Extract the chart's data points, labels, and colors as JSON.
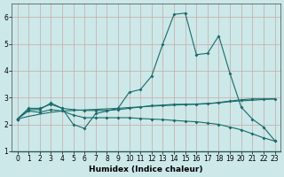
{
  "xlabel": "Humidex (Indice chaleur)",
  "xlim": [
    -0.5,
    23.5
  ],
  "ylim": [
    1,
    6.5
  ],
  "yticks": [
    1,
    2,
    3,
    4,
    5,
    6
  ],
  "xticks": [
    0,
    1,
    2,
    3,
    4,
    5,
    6,
    7,
    8,
    9,
    10,
    11,
    12,
    13,
    14,
    15,
    16,
    17,
    18,
    19,
    20,
    21,
    22,
    23
  ],
  "bg_color": "#cce8e8",
  "plot_bg": "#cce8e8",
  "grid_color_v": "#c8a8a8",
  "grid_color_h": "#c8a8a8",
  "line_color": "#1a6b6b",
  "line1_y": [
    2.2,
    2.6,
    2.6,
    2.75,
    2.6,
    2.0,
    1.85,
    2.4,
    2.5,
    2.6,
    3.2,
    3.3,
    3.8,
    5.0,
    6.1,
    6.15,
    4.6,
    4.65,
    5.3,
    3.9,
    2.65,
    2.2,
    1.9,
    1.4
  ],
  "line2_y": [
    2.2,
    2.55,
    2.55,
    2.8,
    2.6,
    2.55,
    2.52,
    2.52,
    2.52,
    2.55,
    2.6,
    2.65,
    2.7,
    2.72,
    2.75,
    2.75,
    2.75,
    2.77,
    2.82,
    2.87,
    2.92,
    2.95,
    2.95,
    2.95
  ],
  "line3_y": [
    2.2,
    2.3,
    2.38,
    2.45,
    2.5,
    2.52,
    2.54,
    2.56,
    2.58,
    2.6,
    2.63,
    2.65,
    2.68,
    2.7,
    2.72,
    2.74,
    2.76,
    2.78,
    2.8,
    2.85,
    2.88,
    2.9,
    2.93,
    2.95
  ],
  "line4_y": [
    2.2,
    2.5,
    2.45,
    2.55,
    2.5,
    2.35,
    2.25,
    2.25,
    2.25,
    2.25,
    2.25,
    2.22,
    2.2,
    2.18,
    2.15,
    2.12,
    2.1,
    2.05,
    2.0,
    1.9,
    1.8,
    1.65,
    1.5,
    1.38
  ],
  "lw": 0.8,
  "ms": 2.0,
  "xlabel_fontsize": 6.5,
  "tick_fontsize": 5.5
}
